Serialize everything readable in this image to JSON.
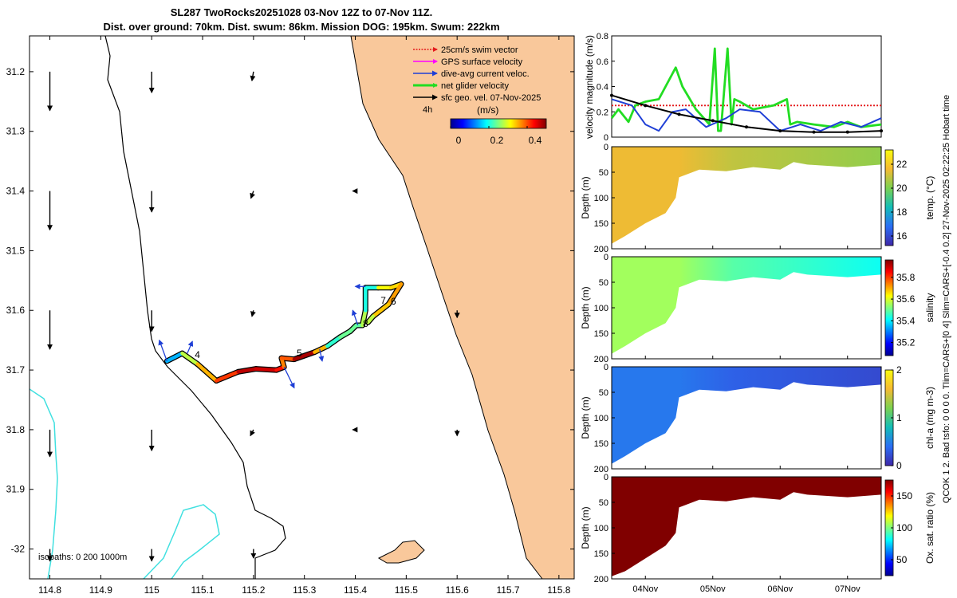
{
  "title": {
    "line1": "SL287 TwoRocks20251028 03-Nov 12Z to 07-Nov 11Z.",
    "line2": "Dist. over ground: 70km. Dist. swum: 86km. Mission DOG: 195km. Swum: 222km"
  },
  "side_text": "QCOK 1  2. Bad tsfo: 0   0   0   0. Tlim=CARS+[0 4] Slim=CARS+[-0.4 0.2] 27-Nov-2025 02:22:25 Hobart time",
  "colors": {
    "land": "#f9c89b",
    "swim": "#e41a1c",
    "gps": "#ff00ff",
    "current": "#1f3fd6",
    "glider": "#22dd22",
    "geo": "#000000",
    "isobath": "#40e0e0"
  },
  "chart_data": [
    {
      "id": "map",
      "type": "scatter",
      "title": "SL287 TwoRocks20251028 03-Nov 12Z to 07-Nov 11Z.",
      "xlim": [
        114.76,
        115.83
      ],
      "ylim": [
        -32.05,
        -31.14
      ],
      "x_ticks": [
        114.8,
        114.9,
        115,
        115.1,
        115.2,
        115.3,
        115.4,
        115.5,
        115.6,
        115.7,
        115.8
      ],
      "x_tick_labels": [
        "114.8",
        "114.9",
        "115",
        "115.1",
        "115.2",
        "115.3",
        "115.4",
        "115.5",
        "115.6",
        "115.7",
        "115.8"
      ],
      "y_ticks": [
        -31.2,
        -31.3,
        -31.4,
        -31.5,
        -31.6,
        -31.7,
        -31.8,
        -31.9,
        -32.0
      ],
      "y_tick_labels": [
        "31.2",
        "31.3",
        "31.4",
        "31.5",
        "31.6",
        "31.7",
        "31.8",
        "31.9",
        "-32"
      ],
      "legend": [
        {
          "label": "25cm/s swim vector",
          "color": "#e41a1c",
          "style": "dotted"
        },
        {
          "label": "GPS surface velocity",
          "color": "#ff00ff",
          "style": "solid"
        },
        {
          "label": "dive-avg current veloc.",
          "color": "#1f3fd6",
          "style": "solid"
        },
        {
          "label": "net glider velocity",
          "color": "#22dd22",
          "style": "thick"
        },
        {
          "label": "sfc geo. vel. 07-Nov-2025",
          "color": "#000000",
          "style": "solid"
        }
      ],
      "legend_position": "top-right",
      "scale_label": "4h",
      "colorbar": {
        "label": "(m/s)",
        "ticks": [
          0,
          0.2,
          0.4
        ],
        "tick_labels": [
          "0",
          "0.2",
          "0.4"
        ],
        "range": [
          0,
          0.5
        ]
      },
      "isobath_label": "isobaths: 0   200  1000m",
      "track": [
        {
          "lon": 115.03,
          "lat": -31.685,
          "speed": 0.08
        },
        {
          "lon": 115.06,
          "lat": -31.672,
          "speed": 0.22
        },
        {
          "lon": 115.09,
          "lat": -31.69,
          "speed": 0.34
        },
        {
          "lon": 115.127,
          "lat": -31.718,
          "speed": 0.36
        },
        {
          "lon": 115.17,
          "lat": -31.703,
          "speed": 0.46
        },
        {
          "lon": 115.205,
          "lat": -31.698,
          "speed": 0.48
        },
        {
          "lon": 115.245,
          "lat": -31.7,
          "speed": 0.44
        },
        {
          "lon": 115.26,
          "lat": -31.695,
          "speed": 0.42
        },
        {
          "lon": 115.255,
          "lat": -31.68,
          "speed": 0.33
        },
        {
          "lon": 115.28,
          "lat": -31.682,
          "speed": 0.46
        },
        {
          "lon": 115.32,
          "lat": -31.67,
          "speed": 0.5
        },
        {
          "lon": 115.345,
          "lat": -31.66,
          "speed": 0.2
        },
        {
          "lon": 115.37,
          "lat": -31.645,
          "speed": 0.22
        },
        {
          "lon": 115.39,
          "lat": -31.635,
          "speed": 0.26
        },
        {
          "lon": 115.402,
          "lat": -31.625,
          "speed": 0.22
        },
        {
          "lon": 115.414,
          "lat": -31.625,
          "speed": 0.25
        },
        {
          "lon": 115.42,
          "lat": -31.6,
          "speed": 0.3
        },
        {
          "lon": 115.42,
          "lat": -31.562,
          "speed": 0.1
        },
        {
          "lon": 115.445,
          "lat": -31.562,
          "speed": 0.3
        },
        {
          "lon": 115.47,
          "lat": -31.562,
          "speed": 0.32
        },
        {
          "lon": 115.49,
          "lat": -31.556,
          "speed": 0.34
        },
        {
          "lon": 115.465,
          "lat": -31.59,
          "speed": 0.38
        },
        {
          "lon": 115.435,
          "lat": -31.61,
          "speed": 0.3
        },
        {
          "lon": 115.425,
          "lat": -31.62,
          "speed": 0.26
        }
      ],
      "day_labels": [
        {
          "text": "4",
          "lon": 115.09,
          "lat": -31.68
        },
        {
          "text": "5",
          "lon": 115.29,
          "lat": -31.677
        },
        {
          "text": "6",
          "lon": 115.475,
          "lat": -31.59
        },
        {
          "text": "7",
          "lon": 115.455,
          "lat": -31.589
        },
        {
          "text": "8",
          "lon": 115.42,
          "lat": -31.628
        }
      ],
      "geo_vectors": [
        {
          "lon": 114.8,
          "lat": -31.2,
          "dlon": 0.0,
          "dlat": -0.065
        },
        {
          "lon": 115,
          "lat": -31.2,
          "dlon": 0.0,
          "dlat": -0.035
        },
        {
          "lon": 115.2,
          "lat": -31.2,
          "dlon": -0.003,
          "dlat": -0.015
        },
        {
          "lon": 114.8,
          "lat": -31.4,
          "dlon": 0.0,
          "dlat": -0.065
        },
        {
          "lon": 115,
          "lat": -31.4,
          "dlon": 0.0,
          "dlat": -0.035
        },
        {
          "lon": 115.2,
          "lat": -31.4,
          "dlon": -0.005,
          "dlat": -0.012
        },
        {
          "lon": 115.4,
          "lat": -31.4,
          "dlon": -0.005,
          "dlat": 0.0
        },
        {
          "lon": 114.8,
          "lat": -31.6,
          "dlon": 0.0,
          "dlat": -0.065
        },
        {
          "lon": 115,
          "lat": -31.6,
          "dlon": 0.0,
          "dlat": -0.035
        },
        {
          "lon": 115.2,
          "lat": -31.6,
          "dlon": -0.003,
          "dlat": -0.01
        },
        {
          "lon": 115.6,
          "lat": -31.6,
          "dlon": 0.0,
          "dlat": -0.012
        },
        {
          "lon": 114.8,
          "lat": -31.8,
          "dlon": 0.0,
          "dlat": -0.045
        },
        {
          "lon": 115,
          "lat": -31.8,
          "dlon": 0.0,
          "dlat": -0.035
        },
        {
          "lon": 115.2,
          "lat": -31.8,
          "dlon": -0.006,
          "dlat": -0.01
        },
        {
          "lon": 115.4,
          "lat": -31.8,
          "dlon": -0.005,
          "dlat": 0.0
        },
        {
          "lon": 115.6,
          "lat": -31.8,
          "dlon": 0.0,
          "dlat": -0.01
        },
        {
          "lon": 114.8,
          "lat": -32.0,
          "dlon": 0.0,
          "dlat": -0.02
        },
        {
          "lon": 115,
          "lat": -32.0,
          "dlon": 0.0,
          "dlat": -0.02
        },
        {
          "lon": 115.2,
          "lat": -32.0,
          "dlon": 0.0,
          "dlat": -0.015
        }
      ],
      "current_vectors": [
        {
          "lon": 115.03,
          "lat": -31.685,
          "dlon": -0.015,
          "dlat": 0.035
        },
        {
          "lon": 115.07,
          "lat": -31.672,
          "dlon": 0.01,
          "dlat": 0.02
        },
        {
          "lon": 115.26,
          "lat": -31.695,
          "dlon": 0.02,
          "dlat": -0.035
        },
        {
          "lon": 115.33,
          "lat": -31.665,
          "dlon": 0.005,
          "dlat": -0.02
        },
        {
          "lon": 115.405,
          "lat": -31.625,
          "dlon": -0.01,
          "dlat": 0.025
        },
        {
          "lon": 115.42,
          "lat": -31.56,
          "dlon": -0.02,
          "dlat": 0.0
        }
      ]
    },
    {
      "id": "velocity",
      "type": "line",
      "ylabel": "velocity magnitude (m/s)",
      "ylim": [
        0,
        0.8
      ],
      "y_ticks": [
        0,
        0.2,
        0.4,
        0.6,
        0.8
      ],
      "xlim": [
        3.5,
        7.5
      ],
      "series": [
        {
          "name": "25cm/s swim vector",
          "color": "#e41a1c",
          "style": "dotted",
          "x": [
            3.5,
            7.5
          ],
          "values": [
            0.25,
            0.25
          ]
        },
        {
          "name": "net glider velocity",
          "color": "#22dd22",
          "x": [
            3.5,
            3.6,
            3.75,
            3.85,
            4.0,
            4.2,
            4.35,
            4.45,
            4.55,
            4.75,
            4.95,
            5.03,
            5.08,
            5.12,
            5.22,
            5.28,
            5.32,
            5.4,
            5.6,
            5.9,
            6.1,
            6.15,
            6.25,
            6.5,
            6.8,
            7.0,
            7.2,
            7.5
          ],
          "values": [
            0.15,
            0.22,
            0.12,
            0.25,
            0.28,
            0.3,
            0.45,
            0.55,
            0.4,
            0.22,
            0.1,
            0.7,
            0.05,
            0.05,
            0.7,
            0.1,
            0.3,
            0.28,
            0.22,
            0.25,
            0.3,
            0.1,
            0.12,
            0.1,
            0.08,
            0.12,
            0.08,
            0.1
          ]
        },
        {
          "name": "dive-avg current veloc.",
          "color": "#1f3fd6",
          "x": [
            3.5,
            3.8,
            4.0,
            4.2,
            4.4,
            4.6,
            4.9,
            5.2,
            5.4,
            5.7,
            6.0,
            6.3,
            6.6,
            6.9,
            7.2,
            7.5
          ],
          "values": [
            0.3,
            0.25,
            0.1,
            0.05,
            0.2,
            0.22,
            0.08,
            0.15,
            0.22,
            0.2,
            0.05,
            0.1,
            0.05,
            0.12,
            0.08,
            0.15
          ]
        },
        {
          "name": "sfc geo. vel.",
          "color": "#000000",
          "x": [
            3.5,
            4.0,
            4.5,
            5.0,
            5.5,
            6.0,
            6.5,
            7.0,
            7.5
          ],
          "values": [
            0.33,
            0.25,
            0.18,
            0.13,
            0.08,
            0.05,
            0.04,
            0.04,
            0.05
          ]
        }
      ]
    },
    {
      "id": "temperature",
      "type": "heatmap",
      "ylabel": "Depth (m)",
      "colorbar_label": "temp. (°C)",
      "colorbar_ticks": [
        16,
        18,
        20,
        22
      ],
      "clim": [
        15.2,
        23.2
      ],
      "y_ticks": [
        0,
        50,
        100,
        150,
        200
      ],
      "ylim": [
        200,
        0
      ],
      "bottom_depth": {
        "x": [
          3.5,
          3.7,
          4.0,
          4.3,
          4.45,
          4.5,
          4.8,
          5.2,
          5.6,
          6.0,
          6.2,
          6.4,
          7.0,
          7.5
        ],
        "depth": [
          190,
          175,
          150,
          130,
          100,
          60,
          45,
          48,
          40,
          45,
          30,
          35,
          40,
          35
        ]
      },
      "deep_value": 21.5,
      "shelf_value": 20.3
    },
    {
      "id": "salinity",
      "type": "heatmap",
      "ylabel": "Depth (m)",
      "colorbar_label": "salinity",
      "colorbar_ticks": [
        35.2,
        35.4,
        35.6,
        35.8
      ],
      "clim": [
        35.08,
        35.96
      ],
      "y_ticks": [
        0,
        50,
        100,
        150,
        200
      ],
      "ylim": [
        200,
        0
      ],
      "bottom_depth": {
        "x": [
          3.5,
          3.7,
          4.0,
          4.3,
          4.45,
          4.5,
          4.8,
          5.2,
          5.6,
          6.0,
          6.2,
          6.4,
          7.0,
          7.5
        ],
        "depth": [
          190,
          175,
          150,
          130,
          100,
          60,
          45,
          48,
          40,
          45,
          30,
          35,
          40,
          35
        ]
      },
      "deep_value": 35.55,
      "shelf_value": 35.42
    },
    {
      "id": "chla",
      "type": "heatmap",
      "ylabel": "Depth (m)",
      "colorbar_label": "chl-a (mg m-3)",
      "colorbar_ticks": [
        0,
        1,
        2
      ],
      "clim": [
        0,
        2
      ],
      "y_ticks": [
        0,
        50,
        100,
        150,
        200
      ],
      "ylim": [
        200,
        0
      ],
      "bottom_depth": {
        "x": [
          3.5,
          3.7,
          4.0,
          4.3,
          4.45,
          4.5,
          4.8,
          5.2,
          5.6,
          6.0,
          6.2,
          6.4,
          7.0,
          7.5
        ],
        "depth": [
          190,
          175,
          150,
          130,
          100,
          60,
          45,
          48,
          40,
          45,
          30,
          35,
          40,
          35
        ]
      },
      "deep_value": 0.45,
      "shelf_value": 0.2
    },
    {
      "id": "oxygen",
      "type": "heatmap",
      "ylabel": "Depth (m)",
      "colorbar_label": "Ox. sat. ratio (%)",
      "colorbar_ticks": [
        50,
        100,
        150
      ],
      "clim": [
        25,
        175
      ],
      "y_ticks": [
        0,
        50,
        100,
        150,
        200
      ],
      "ylim": [
        200,
        0
      ],
      "x_ticks": [
        4,
        5,
        6,
        7
      ],
      "x_tick_labels": [
        "04Nov",
        "05Nov",
        "06Nov",
        "07Nov"
      ],
      "xlim": [
        3.5,
        7.5
      ],
      "bottom_depth": {
        "x": [
          3.5,
          3.7,
          4.0,
          4.3,
          4.45,
          4.5,
          4.8,
          5.2,
          5.6,
          6.0,
          6.2,
          6.4,
          7.0,
          7.5
        ],
        "depth": [
          195,
          185,
          160,
          135,
          110,
          60,
          45,
          48,
          40,
          45,
          30,
          35,
          40,
          35
        ]
      },
      "deep_value": 175,
      "shelf_value": 175
    }
  ]
}
